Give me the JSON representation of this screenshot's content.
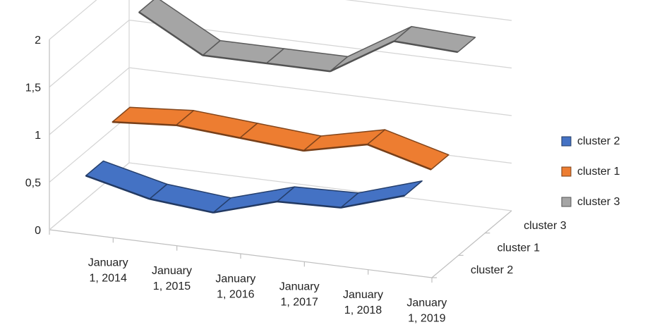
{
  "chart_data": {
    "type": "line",
    "style": "3d-line",
    "categories": [
      "January 1, 2014",
      "January 1, 2015",
      "January 1, 2016",
      "January 1, 2017",
      "January 1, 2018",
      "January 1, 2019"
    ],
    "category_lines": [
      [
        "January",
        "1, 2014"
      ],
      [
        "January",
        "1, 2015"
      ],
      [
        "January",
        "1, 2016"
      ],
      [
        "January",
        "1, 2017"
      ],
      [
        "January",
        "1, 2018"
      ],
      [
        "January",
        "1, 2019"
      ]
    ],
    "series": [
      {
        "name": "cluster 2",
        "color": "#4472C4",
        "values": [
          0.57,
          0.41,
          0.35,
          0.55,
          0.57,
          0.78
        ]
      },
      {
        "name": "cluster 1",
        "color": "#ED7D31",
        "values": [
          0.9,
          0.95,
          0.9,
          0.85,
          1.0,
          0.82
        ]
      },
      {
        "name": "cluster  3",
        "color": "#A5A5A5",
        "values": [
          1.82,
          1.45,
          1.45,
          1.45,
          1.85,
          1.82
        ]
      }
    ],
    "depth_labels": [
      "cluster 2",
      "cluster 1",
      "cluster  3"
    ],
    "y_ticks": [
      "0",
      "0,5",
      "1",
      "1,5",
      "2"
    ],
    "ylim": [
      0,
      2
    ],
    "grid": true,
    "legend_position": "right",
    "legend": [
      {
        "label": "cluster 2",
        "color": "#4472C4"
      },
      {
        "label": "cluster 1",
        "color": "#ED7D31"
      },
      {
        "label": "cluster  3",
        "color": "#A5A5A5"
      }
    ]
  }
}
